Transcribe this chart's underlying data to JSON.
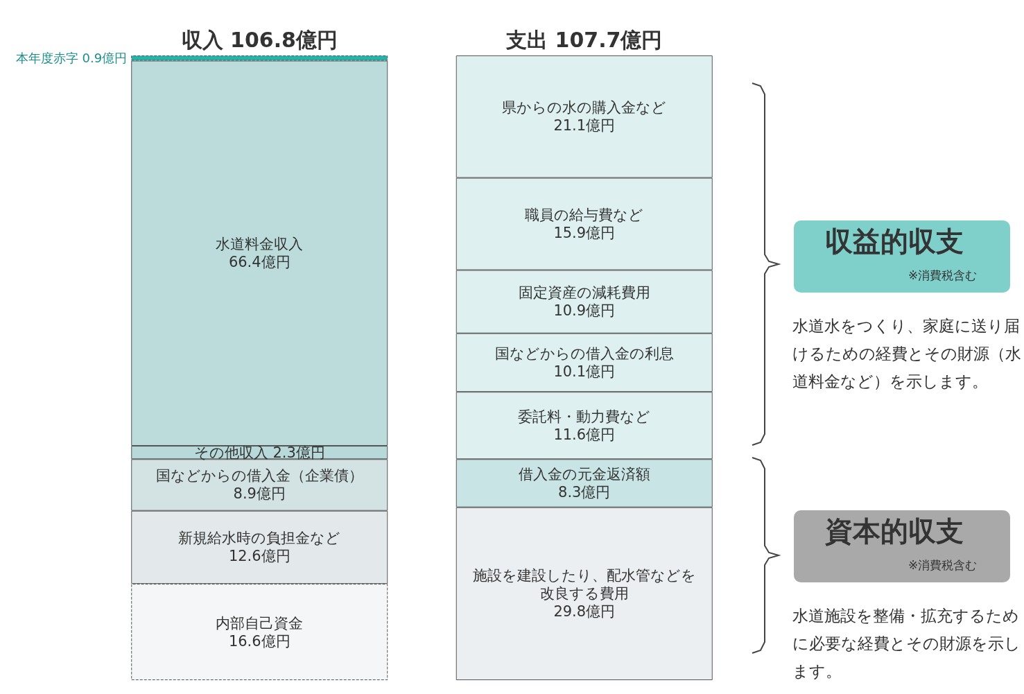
{
  "chart_data": {
    "type": "bar",
    "stacked": true,
    "data_labels": true,
    "categories": [
      "収入 106.8億円",
      "支出 107.7億円"
    ],
    "series": [
      {
        "name": "内部自己資金",
        "color": "#f4f6f7",
        "line_style": "dashed",
        "values": [
          16.6,
          null
        ],
        "value_labels": [
          "16.6億円",
          null
        ]
      },
      {
        "name": "新規給水時の負担金など",
        "color": "#e3e8ea",
        "values": [
          12.6,
          null
        ],
        "value_labels": [
          "12.6億円",
          null
        ]
      },
      {
        "name": "国などからの借入金（企業債）",
        "color": "#d3e2e3",
        "values": [
          8.9,
          null
        ],
        "value_labels": [
          "8.9億円",
          null
        ]
      },
      {
        "name": "その他収入",
        "color": "#b7d9d9",
        "values": [
          2.3,
          null
        ],
        "value_labels": [
          "2.3億円",
          null
        ]
      },
      {
        "name": "水道料金収入",
        "color": "#bcdcdc",
        "values": [
          66.4,
          null
        ],
        "value_labels": [
          "66.4億円",
          null
        ]
      },
      {
        "name": "本年度赤字",
        "color": "#22b5ae",
        "line_style": "dashed",
        "values": [
          0.9,
          null
        ],
        "value_labels": [
          "0.9億円",
          null
        ]
      },
      {
        "name": "施設を建設したり、配水管などを改良する費用",
        "color": "#eceff1",
        "values": [
          null,
          29.8
        ],
        "value_labels": [
          null,
          "29.8億円"
        ]
      },
      {
        "name": "借入金の元金返済額",
        "color": "#c9e4e4",
        "values": [
          null,
          8.3
        ],
        "value_labels": [
          null,
          "8.3億円"
        ]
      },
      {
        "name": "委託料・動力費など",
        "color": "#def0f0",
        "values": [
          null,
          11.6
        ],
        "value_labels": [
          null,
          "11.6億円"
        ]
      },
      {
        "name": "国などからの借入金の利息",
        "color": "#def0f0",
        "values": [
          null,
          10.1
        ],
        "value_labels": [
          null,
          "10.1億円"
        ]
      },
      {
        "name": "固定資産の減耗費用",
        "color": "#def0f0",
        "values": [
          null,
          10.9
        ],
        "value_labels": [
          null,
          "10.9億円"
        ]
      },
      {
        "name": "職員の給与費など",
        "color": "#def0f0",
        "values": [
          null,
          15.9
        ],
        "value_labels": [
          null,
          "15.9億円"
        ]
      },
      {
        "name": "県からの水の購入金など",
        "color": "#def0f0",
        "values": [
          null,
          21.1
        ],
        "value_labels": [
          null,
          "21.1億円"
        ]
      }
    ],
    "annotations": [
      "収益的収支",
      "※消費税含む",
      "水道水をつくり、家庭に送り届けるための経費とその財源（水道料金など）を示します。",
      "資本的収支",
      "※消費税含む",
      "水道施設を整備・拡充するために必要な経費とその財源を示します。"
    ]
  }
}
